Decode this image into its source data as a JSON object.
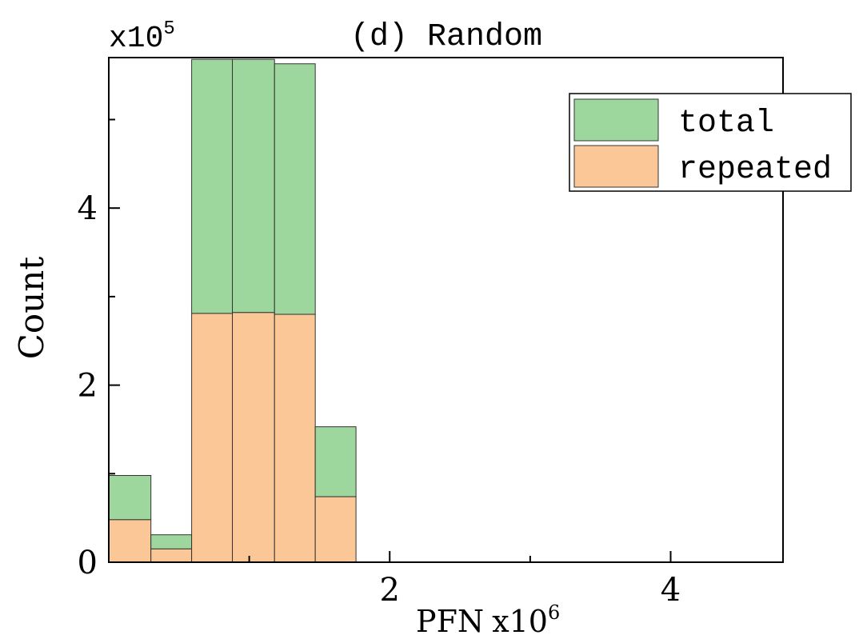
{
  "chart_data": {
    "type": "bar",
    "stacked": true,
    "title": "(d) Random",
    "xlabel": "PFN",
    "ylabel": "Count",
    "x_multiplier": {
      "base": "x10",
      "exp": "6"
    },
    "y_multiplier": {
      "base": "x10",
      "exp": "5"
    },
    "xlim": [
      0.0,
      4.8
    ],
    "ylim": [
      0,
      5.7
    ],
    "x_ticks": [
      2,
      4
    ],
    "x_minor_ticks": [
      1,
      3
    ],
    "y_ticks": [
      0,
      2,
      4
    ],
    "y_minor_ticks": [
      1,
      3,
      5
    ],
    "bin_edges": [
      0.0,
      0.3,
      0.59,
      0.88,
      1.18,
      1.47,
      1.76
    ],
    "series": [
      {
        "name": "repeated",
        "color": "#fcc797",
        "values": [
          0.48,
          0.15,
          2.81,
          2.82,
          2.8,
          0.74
        ]
      },
      {
        "name": "total",
        "color": "#9dd79d",
        "values": [
          0.98,
          0.31,
          5.68,
          5.68,
          5.63,
          1.53
        ]
      }
    ],
    "legend": {
      "position": "top-right",
      "order": [
        "total",
        "repeated"
      ]
    },
    "grid": false
  }
}
